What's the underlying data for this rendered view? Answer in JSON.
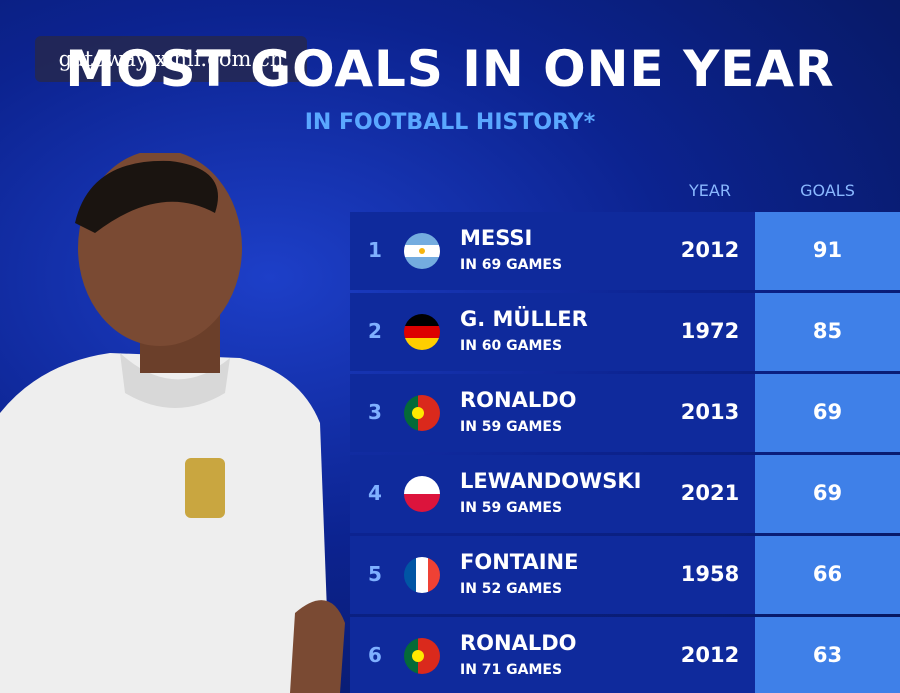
{
  "watermark": "gateway-xinli.com.cn",
  "header": {
    "title": "MOST GOALS IN ONE YEAR",
    "subtitle": "IN FOOTBALL HISTORY*"
  },
  "table": {
    "columns": [
      "YEAR",
      "GOALS"
    ],
    "rows": [
      {
        "rank": 1,
        "name": "MESSI",
        "games": "IN 69 GAMES",
        "year": 2012,
        "goals": 91
      },
      {
        "rank": 2,
        "name": "G. MÜLLER",
        "games": "IN 60 GAMES",
        "year": 1972,
        "goals": 85
      },
      {
        "rank": 3,
        "name": "RONALDO",
        "games": "IN 59 GAMES",
        "year": 2013,
        "goals": 69
      },
      {
        "rank": 4,
        "name": "LEWANDOWSKI",
        "games": "IN 59 GAMES",
        "year": 2021,
        "goals": 69
      },
      {
        "rank": 5,
        "name": "FONTAINE",
        "games": "IN 52 GAMES",
        "year": 1958,
        "goals": 66
      },
      {
        "rank": 6,
        "name": "RONALDO",
        "games": "IN 71 GAMES",
        "year": 2012,
        "goals": 63
      }
    ]
  }
}
